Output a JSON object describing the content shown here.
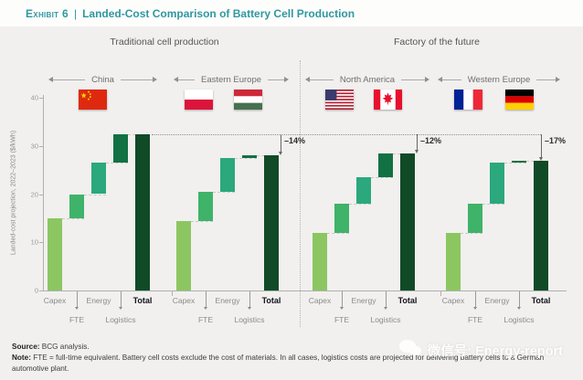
{
  "header": {
    "exhibit_label": "Exhibit 6",
    "separator": "|",
    "title": "Landed-Cost Comparison of Battery Cell Production",
    "accent_color": "#2E98A0"
  },
  "chart_data": {
    "type": "bar",
    "subtype": "waterfall",
    "column_titles": [
      "Traditional cell production",
      "Factory of the future"
    ],
    "ylabel": "Landed-cost projection, 2022–2023 ($/kWh)",
    "ylim": [
      0,
      40
    ],
    "yticks": [
      0,
      10,
      20,
      30,
      40
    ],
    "grid": false,
    "legend": "none",
    "categories": [
      "Capex",
      "FTE",
      "Energy",
      "Logistics",
      "Total"
    ],
    "series": [
      {
        "region": "China",
        "column": "Traditional cell production",
        "flags": [
          "china"
        ],
        "segments": [
          15,
          5,
          6.5,
          6
        ],
        "total": 32.5,
        "delta_vs_china": null
      },
      {
        "region": "Eastern Europe",
        "column": "Traditional cell production",
        "flags": [
          "poland",
          "hungary"
        ],
        "segments": [
          14.5,
          6,
          7,
          0.5
        ],
        "total": 28,
        "delta_vs_china": "–14%"
      },
      {
        "region": "North America",
        "column": "Factory of the future",
        "flags": [
          "usa",
          "canada"
        ],
        "segments": [
          12,
          6,
          5.5,
          5
        ],
        "total": 28.5,
        "delta_vs_china": "–12%"
      },
      {
        "region": "Western Europe",
        "column": "Factory of the future",
        "flags": [
          "france",
          "germany"
        ],
        "segments": [
          12,
          6,
          8.5,
          0.5
        ],
        "total": 27,
        "delta_vs_china": "–17%"
      }
    ],
    "reference_line_value": 32.5,
    "colors": {
      "capex": "#8CC661",
      "fte": "#3FB369",
      "energy": "#2BA87D",
      "logistics": "#117142",
      "total": "#104A27"
    }
  },
  "footer": {
    "source_label": "Source:",
    "source_text": "BCG analysis.",
    "note_label": "Note:",
    "note_text": "FTE = full-time equivalent. Battery cell costs exclude the cost of materials. In all cases, logistics costs are projected for delivering battery cells to a German automotive plant."
  },
  "watermark": {
    "text": "微信号: Energy-report"
  }
}
